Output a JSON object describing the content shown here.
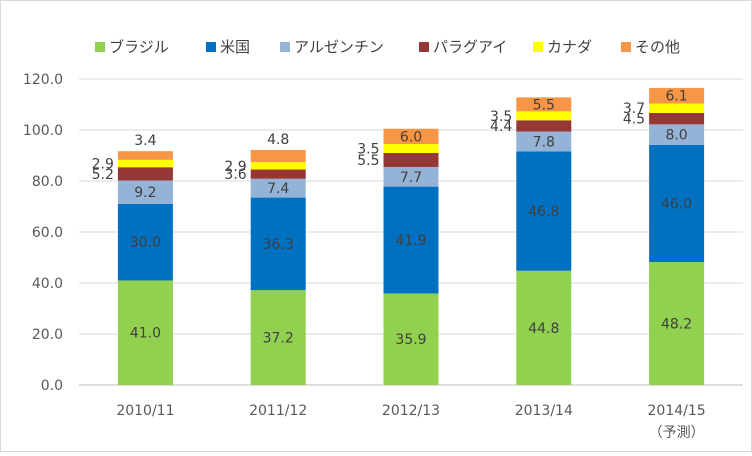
{
  "chart_data": {
    "type": "bar",
    "stacked": true,
    "title": "",
    "xlabel": "",
    "ylabel": "",
    "categories": [
      "2010/11",
      "2011/12",
      "2012/13",
      "2013/14",
      "2014/15"
    ],
    "category_sublabels": [
      "",
      "",
      "",
      "",
      "（予測）"
    ],
    "ylim": [
      0,
      120
    ],
    "yticks": [
      0,
      20,
      40,
      60,
      80,
      100,
      120
    ],
    "ytick_labels": [
      "0.0",
      "20.0",
      "40.0",
      "60.0",
      "80.0",
      "100.0",
      "120.0"
    ],
    "grid": true,
    "legend_position": "top",
    "series": [
      {
        "name": "ブラジル",
        "color": "#92d050",
        "values": [
          41.0,
          37.2,
          35.9,
          44.8,
          48.2
        ],
        "labels": [
          "41.0",
          "37.2",
          "35.9",
          "44.8",
          "48.2"
        ],
        "label_pos": "inside"
      },
      {
        "name": "米国",
        "color": "#0070c0",
        "values": [
          30.0,
          36.3,
          41.9,
          46.8,
          46.0
        ],
        "labels": [
          "30.0",
          "36.3",
          "41.9",
          "46.8",
          "46.0"
        ],
        "label_pos": "inside"
      },
      {
        "name": "アルゼンチン",
        "color": "#95b3d7",
        "values": [
          9.2,
          7.4,
          7.7,
          7.8,
          8.0
        ],
        "labels": [
          "9.2",
          "7.4",
          "7.7",
          "7.8",
          "8.0"
        ],
        "label_pos": "inside"
      },
      {
        "name": "パラグアイ",
        "color": "#953735",
        "values": [
          5.2,
          3.6,
          5.5,
          4.4,
          4.5
        ],
        "labels": [
          "5.2",
          "3.6",
          "5.5",
          "4.4",
          "4.5"
        ],
        "label_pos": "left"
      },
      {
        "name": "カナダ",
        "color": "#ffff00",
        "values": [
          2.9,
          2.9,
          3.5,
          3.5,
          3.7
        ],
        "labels": [
          "2.9",
          "2.9",
          "3.5",
          "3.5",
          "3.7"
        ],
        "label_pos": "left"
      },
      {
        "name": "その他",
        "color": "#f79646",
        "values": [
          3.4,
          4.8,
          6.0,
          5.5,
          6.1
        ],
        "labels": [
          "3.4",
          "4.8",
          "6.0",
          "5.5",
          "6.1"
        ],
        "label_pos": "mixed"
      }
    ]
  }
}
